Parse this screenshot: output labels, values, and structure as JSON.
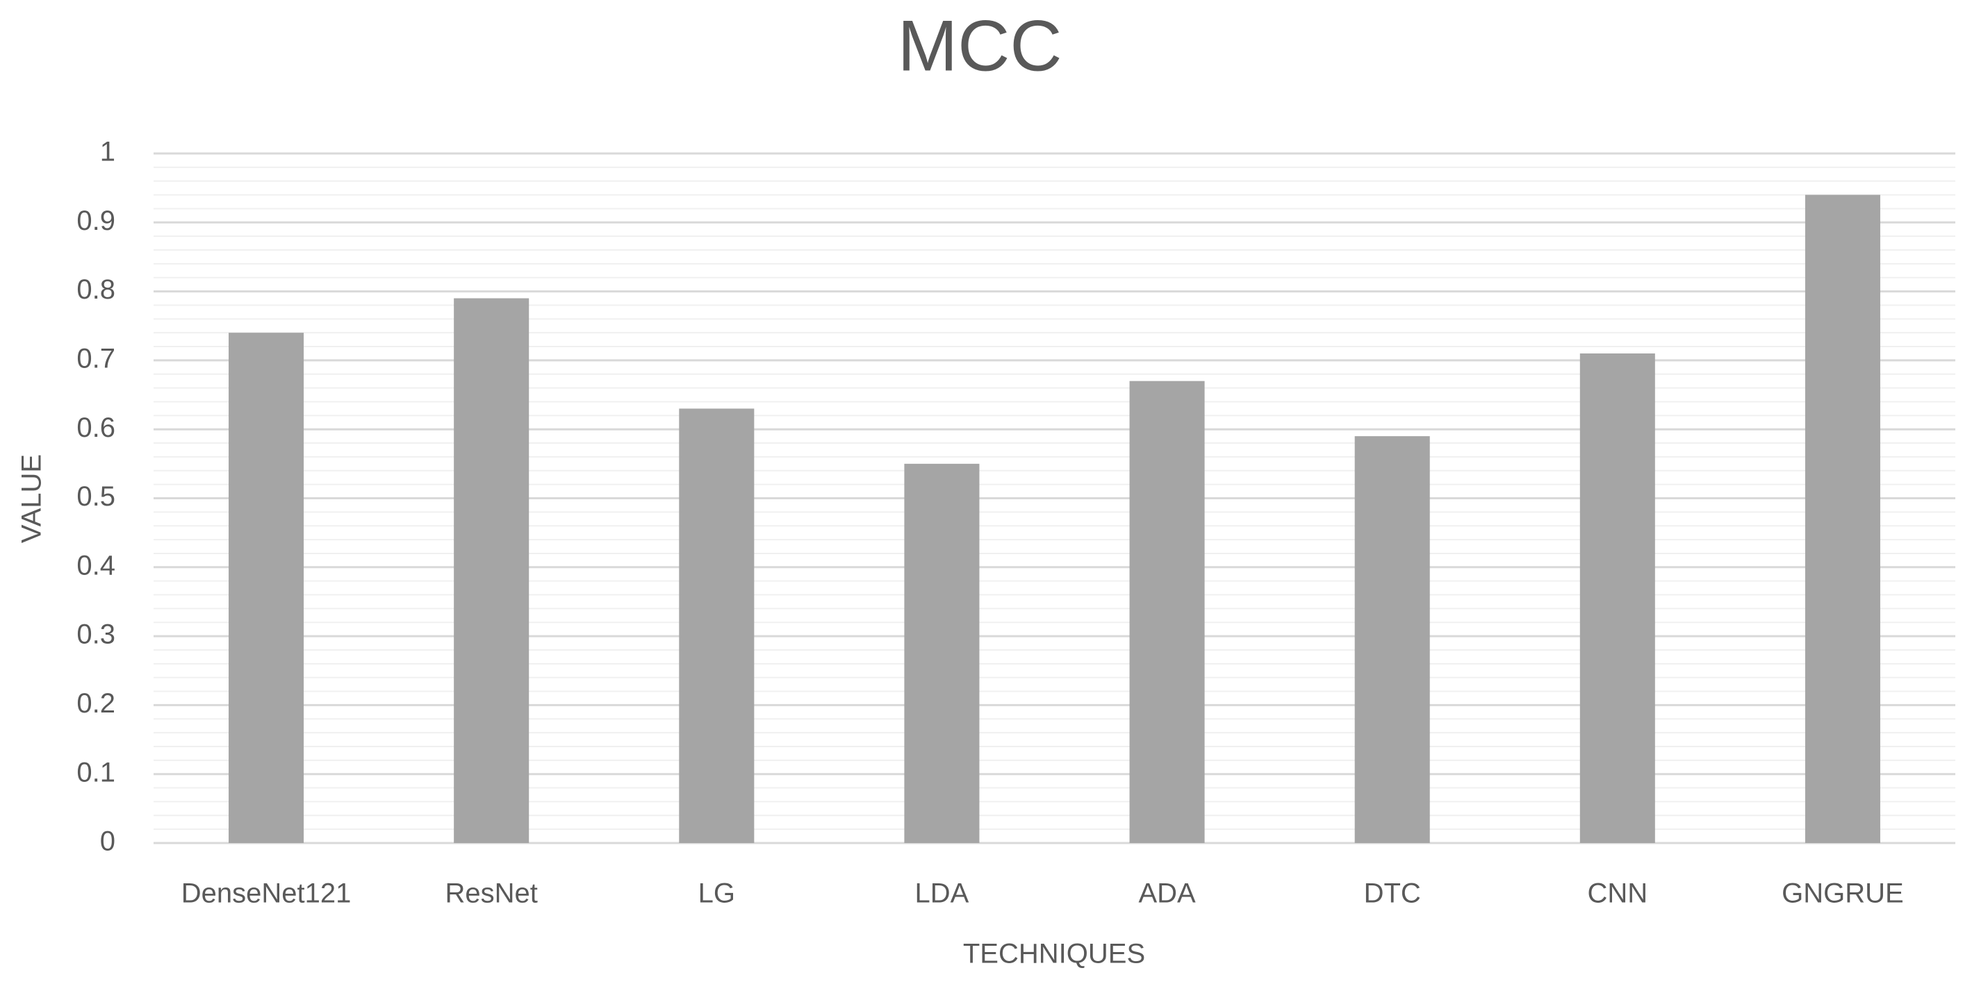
{
  "chart_data": {
    "type": "bar",
    "title": "MCC",
    "x_label": "TECHNIQUES",
    "y_label": "VALUE",
    "categories": [
      "DenseNet121",
      "ResNet",
      "LG",
      "LDA",
      "ADA",
      "DTC",
      "CNN",
      "GNGRUE"
    ],
    "values": [
      0.74,
      0.79,
      0.63,
      0.55,
      0.67,
      0.59,
      0.71,
      0.94
    ],
    "color": "#a5a5a5",
    "ylim": [
      0,
      1
    ],
    "yticks": [
      0,
      0.1,
      0.2,
      0.3,
      0.4,
      0.5,
      0.6,
      0.7,
      0.8,
      0.9,
      1
    ],
    "grid": true,
    "minor_ticks_per_major": 5
  }
}
